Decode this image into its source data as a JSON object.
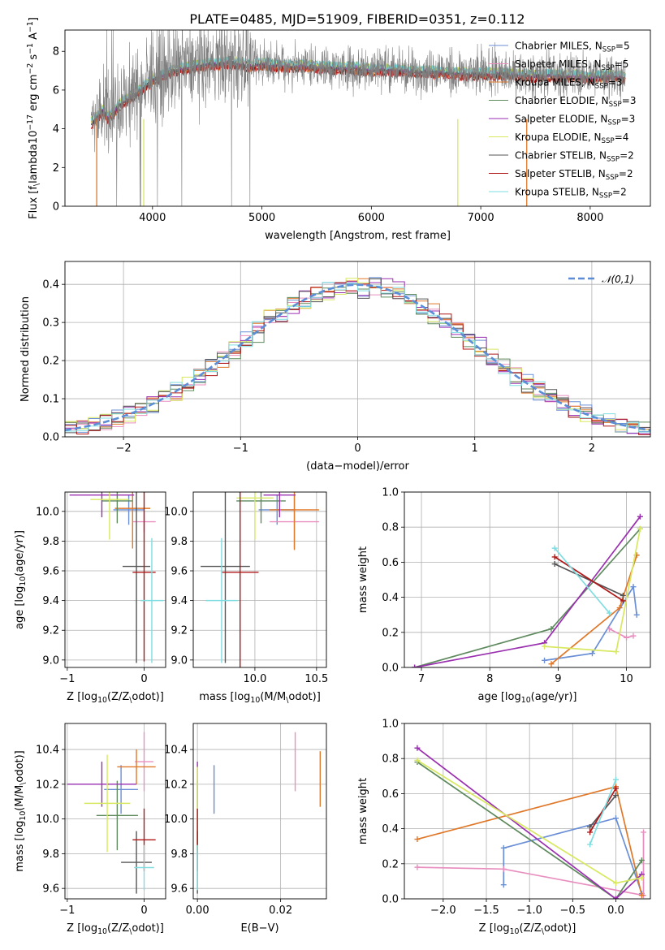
{
  "title": "PLATE=0485, MJD=51909, FIBERID=0351, z=0.112",
  "colors": {
    "chabrier_miles": "#6a8fd6",
    "salpeter_miles": "#e88fbf",
    "kroupa_miles": "#e0782a",
    "chabrier_elodie": "#5e8a5e",
    "salpeter_elodie": "#9a2fb0",
    "kroupa_elodie": "#d8e860",
    "chabrier_stelib": "#555555",
    "salpeter_stelib": "#b01818",
    "kroupa_stelib": "#7fdde0",
    "normal": "#5b8ed6",
    "grid": "#b0b0b0"
  },
  "chart_data": [
    {
      "id": "spectrum",
      "type": "line",
      "title": "PLATE=0485, MJD=51909, FIBERID=0351, z=0.112",
      "xlabel": "wavelength [Angstrom, rest frame]",
      "ylabel": "Flux [f$_\\lambda$10$^{-17}$ erg cm$^{-2}$ s$^{-1}$ A$^{-1}$]",
      "xlim": [
        3200,
        8550
      ],
      "ylim": [
        0,
        9.1
      ],
      "xticks": [
        "4000",
        "5000",
        "6000",
        "7000",
        "8000"
      ],
      "yticks": [
        "0",
        "2",
        "4",
        "6",
        "8"
      ],
      "data_series": {
        "name": "data",
        "x": [
          3450,
          3500,
          3550,
          3600,
          3650,
          3700,
          3800,
          3900,
          4000,
          4100,
          4200,
          4300,
          4400,
          4500,
          4600,
          4700,
          4800,
          4900,
          5000,
          5200,
          5400,
          5600,
          5800,
          6000,
          6200,
          6400,
          6600,
          6800,
          7000,
          7200,
          7400,
          7600,
          7800,
          8000,
          8200,
          8300
        ],
        "y": [
          4.4,
          4.7,
          5.0,
          4.6,
          4.9,
          5.3,
          5.7,
          6.1,
          6.6,
          6.8,
          7.1,
          7.2,
          7.3,
          7.4,
          7.4,
          7.5,
          7.4,
          7.3,
          7.4,
          7.3,
          7.3,
          7.2,
          7.2,
          7.1,
          7.1,
          7.0,
          7.0,
          6.9,
          6.9,
          6.9,
          6.8,
          6.8,
          6.8,
          6.7,
          6.8,
          6.7
        ]
      },
      "legend": [
        "Chabrier MILES, N$_{SSP}$=5",
        "Salpeter MILES, N$_{SSP}$=5",
        "Kroupa MILES, N$_{SSP}$=3",
        "Chabrier ELODIE, N$_{SSP}$=3",
        "Salpeter ELODIE, N$_{SSP}$=3",
        "Kroupa ELODIE, N$_{SSP}$=4",
        "Chabrier STELIB, N$_{SSP}$=2",
        "Salpeter STELIB, N$_{SSP}$=2",
        "Kroupa STELIB, N$_{SSP}$=2"
      ],
      "legend_location": "upper right"
    },
    {
      "id": "residuals",
      "type": "line",
      "xlabel": "(data-model)/error",
      "ylabel": "Normed distribution",
      "xlim": [
        -2.5,
        2.5
      ],
      "ylim": [
        0,
        0.46
      ],
      "xticks": [
        "−2",
        "−1",
        "0",
        "1",
        "2"
      ],
      "yticks": [
        "0.0",
        "0.1",
        "0.2",
        "0.3",
        "0.4"
      ],
      "legend": [
        "$\\mathcal{N}(0,1)$"
      ],
      "legend_location": "upper right",
      "grid": true
    },
    {
      "id": "age_vs_z",
      "type": "scatter",
      "xlabel": "Z [log$_{10}$($Z/Z_\\odot$)]",
      "ylabel": "age  [log$_{10}$($age/yr$)]",
      "xlim": [
        -1.03,
        0.28
      ],
      "ylim": [
        8.95,
        10.13
      ],
      "xticks": [
        "−1",
        "0"
      ],
      "yticks": [
        "9.0",
        "9.2",
        "9.4",
        "9.6",
        "9.8",
        "10.0"
      ],
      "grid": true,
      "errorbars": [
        {
          "series": "chabrier_miles",
          "x": -0.2,
          "y": 10.01,
          "xerr": 0.2,
          "yerr": 0.1
        },
        {
          "series": "salpeter_miles",
          "x": 0.0,
          "y": 9.93,
          "xerr": 0.15,
          "yerr": 0.07
        },
        {
          "series": "kroupa_miles",
          "x": -0.15,
          "y": 10.02,
          "xerr": 0.23,
          "yerr": 0.27
        },
        {
          "series": "chabrier_elodie",
          "x": -0.35,
          "y": 10.07,
          "xerr": 0.2,
          "yerr": 0.15
        },
        {
          "series": "salpeter_elodie",
          "x": -0.55,
          "y": 10.11,
          "xerr": 0.42,
          "yerr": 0.15
        },
        {
          "series": "kroupa_elodie",
          "x": -0.45,
          "y": 10.08,
          "xerr": 0.25,
          "yerr": 0.27
        },
        {
          "series": "chabrier_stelib",
          "x": -0.1,
          "y": 9.63,
          "xerr": 0.18,
          "yerr": 0.65
        },
        {
          "series": "salpeter_stelib",
          "x": 0.0,
          "y": 9.59,
          "xerr": 0.15,
          "yerr": 0.6
        },
        {
          "series": "kroupa_stelib",
          "x": 0.1,
          "y": 9.4,
          "xerr": 0.15,
          "yerr": 0.42
        }
      ]
    },
    {
      "id": "age_vs_mass",
      "type": "scatter",
      "xlabel": "mass [log$_{10}$($M/M_\\odot$)]",
      "xlim": [
        9.5,
        10.58
      ],
      "ylim": [
        8.95,
        10.13
      ],
      "xticks": [
        "10.0",
        "10.5"
      ],
      "yticks": [
        "9.0",
        "9.2",
        "9.4",
        "9.6",
        "9.8",
        "10.0"
      ],
      "grid": true,
      "errorbars": [
        {
          "series": "chabrier_miles",
          "x": 10.18,
          "y": 10.01,
          "xerr": 0.15,
          "yerr": 0.1
        },
        {
          "series": "salpeter_miles",
          "x": 10.32,
          "y": 9.93,
          "xerr": 0.2,
          "yerr": 0.18
        },
        {
          "series": "kroupa_miles",
          "x": 10.32,
          "y": 10.01,
          "xerr": 0.2,
          "yerr": 0.27
        },
        {
          "series": "chabrier_elodie",
          "x": 10.05,
          "y": 10.07,
          "xerr": 0.2,
          "yerr": 0.15
        },
        {
          "series": "salpeter_elodie",
          "x": 10.2,
          "y": 10.11,
          "xerr": 0.13,
          "yerr": 0.15
        },
        {
          "series": "kroupa_elodie",
          "x": 10.0,
          "y": 10.09,
          "xerr": 0.15,
          "yerr": 0.28
        },
        {
          "series": "chabrier_stelib",
          "x": 9.76,
          "y": 9.63,
          "xerr": 0.2,
          "yerr": 0.65
        },
        {
          "series": "salpeter_stelib",
          "x": 9.88,
          "y": 9.59,
          "xerr": 0.15,
          "yerr": 0.7
        },
        {
          "series": "kroupa_stelib",
          "x": 9.73,
          "y": 9.4,
          "xerr": 0.13,
          "yerr": 0.42
        }
      ]
    },
    {
      "id": "weight_vs_age",
      "type": "line",
      "xlabel": "age  [log$_{10}$($age/yr$)]",
      "ylabel": "mass weight",
      "xlim": [
        6.75,
        10.35
      ],
      "ylim": [
        0,
        1
      ],
      "xticks": [
        "7",
        "8",
        "9",
        "10"
      ],
      "yticks": [
        "0.0",
        "0.2",
        "0.4",
        "0.6",
        "0.8",
        "1.0"
      ],
      "grid": true,
      "series": [
        {
          "key": "chabrier_miles",
          "x": [
            8.8,
            9.5,
            10.1,
            10.15
          ],
          "y": [
            0.04,
            0.08,
            0.46,
            0.3
          ]
        },
        {
          "key": "salpeter_miles",
          "x": [
            9.75,
            10.0,
            10.1
          ],
          "y": [
            0.22,
            0.17,
            0.18
          ]
        },
        {
          "key": "kroupa_miles",
          "x": [
            8.9,
            9.9,
            10.15
          ],
          "y": [
            0.02,
            0.34,
            0.64
          ]
        },
        {
          "key": "chabrier_elodie",
          "x": [
            6.9,
            8.9,
            10.2
          ],
          "y": [
            0.0,
            0.22,
            0.79
          ]
        },
        {
          "key": "salpeter_elodie",
          "x": [
            6.9,
            8.8,
            10.2
          ],
          "y": [
            0.0,
            0.14,
            0.86
          ]
        },
        {
          "key": "kroupa_elodie",
          "x": [
            8.8,
            9.85,
            10.2
          ],
          "y": [
            0.12,
            0.09,
            0.79
          ]
        },
        {
          "key": "chabrier_stelib",
          "x": [
            8.95,
            9.95
          ],
          "y": [
            0.59,
            0.41
          ]
        },
        {
          "key": "salpeter_stelib",
          "x": [
            8.95,
            9.95
          ],
          "y": [
            0.63,
            0.38
          ]
        },
        {
          "key": "kroupa_stelib",
          "x": [
            8.95,
            9.75
          ],
          "y": [
            0.68,
            0.31
          ]
        }
      ]
    },
    {
      "id": "mass_vs_z",
      "type": "scatter",
      "xlabel": "Z [log$_{10}$($Z/Z_\\odot$)]",
      "ylabel": "mass [log$_{10}$($M/M_\\odot$)]",
      "xlim": [
        -1.03,
        0.28
      ],
      "ylim": [
        9.54,
        10.55
      ],
      "xticks": [
        "−1",
        "0"
      ],
      "yticks": [
        "9.6",
        "9.8",
        "10.0",
        "10.2",
        "10.4"
      ],
      "grid": true,
      "errorbars": [
        {
          "series": "chabrier_miles",
          "x": -0.3,
          "y": 10.17,
          "xerr": 0.22,
          "yerr": 0.14
        },
        {
          "series": "salpeter_miles",
          "x": 0.0,
          "y": 10.33,
          "xerr": 0.12,
          "yerr": 0.17
        },
        {
          "series": "kroupa_miles",
          "x": -0.1,
          "y": 10.3,
          "xerr": 0.25,
          "yerr": 0.1
        },
        {
          "series": "chabrier_elodie",
          "x": -0.35,
          "y": 10.02,
          "xerr": 0.27,
          "yerr": 0.2
        },
        {
          "series": "salpeter_elodie",
          "x": -0.55,
          "y": 10.2,
          "xerr": 0.45,
          "yerr": 0.13
        },
        {
          "series": "kroupa_elodie",
          "x": -0.48,
          "y": 10.09,
          "xerr": 0.3,
          "yerr": 0.28
        },
        {
          "series": "chabrier_stelib",
          "x": -0.1,
          "y": 9.75,
          "xerr": 0.2,
          "yerr": 0.18
        },
        {
          "series": "salpeter_stelib",
          "x": 0.0,
          "y": 9.88,
          "xerr": 0.15,
          "yerr": 0.18
        },
        {
          "series": "kroupa_stelib",
          "x": 0.0,
          "y": 9.72,
          "xerr": 0.13,
          "yerr": 0.13
        }
      ]
    },
    {
      "id": "mass_vs_ebv",
      "type": "scatter",
      "xlabel": "E(B-V)",
      "xlim": [
        -0.001,
        0.031
      ],
      "ylim": [
        9.54,
        10.55
      ],
      "xticks": [
        "0.00",
        "0.02"
      ],
      "yticks": [
        "9.6",
        "9.8",
        "10.0",
        "10.2",
        "10.4"
      ],
      "grid": true,
      "errorbars": [
        {
          "series": "chabrier_miles",
          "x": 0.004,
          "y": 10.17,
          "yerr": 0.14
        },
        {
          "series": "salpeter_miles",
          "x": 0.0235,
          "y": 10.33,
          "yerr": 0.17
        },
        {
          "series": "kroupa_miles",
          "x": 0.0295,
          "y": 10.23,
          "yerr": 0.16
        },
        {
          "series": "chabrier_elodie",
          "x": 0.0,
          "y": 10.02,
          "yerr": 0.2
        },
        {
          "series": "salpeter_elodie",
          "x": 0.0,
          "y": 10.2,
          "yerr": 0.13
        },
        {
          "series": "kroupa_elodie",
          "x": 0.0,
          "y": 10.05,
          "yerr": 0.25
        },
        {
          "series": "chabrier_stelib",
          "x": 0.0,
          "y": 9.75,
          "yerr": 0.18
        },
        {
          "series": "salpeter_stelib",
          "x": 0.0,
          "y": 9.88,
          "yerr": 0.18
        },
        {
          "series": "kroupa_stelib",
          "x": 0.0,
          "y": 9.72,
          "yerr": 0.13
        }
      ]
    },
    {
      "id": "weight_vs_z",
      "type": "line",
      "xlabel": "Z [log$_{10}$($Z/Z_\\odot$)]",
      "ylabel": "mass weight",
      "xlim": [
        -2.45,
        0.4
      ],
      "ylim": [
        0,
        1
      ],
      "xticks": [
        "−2.0",
        "−1.5",
        "−1.0",
        "−0.5",
        "0.0"
      ],
      "yticks": [
        "0.0",
        "0.2",
        "0.4",
        "0.6",
        "0.8",
        "1.0"
      ],
      "grid": true,
      "series": [
        {
          "key": "chabrier_miles",
          "x": [
            -1.3,
            -1.3,
            0.0,
            0.3
          ],
          "y": [
            0.08,
            0.29,
            0.46,
            0.03
          ]
        },
        {
          "key": "salpeter_miles",
          "x": [
            -2.3,
            -1.3,
            0.32,
            0.32
          ],
          "y": [
            0.18,
            0.17,
            0.02,
            0.38
          ]
        },
        {
          "key": "kroupa_miles",
          "x": [
            -2.3,
            0.0,
            0.3
          ],
          "y": [
            0.34,
            0.64,
            0.02
          ]
        },
        {
          "key": "chabrier_elodie",
          "x": [
            -2.3,
            0.0,
            0.3
          ],
          "y": [
            0.78,
            0.0,
            0.22
          ]
        },
        {
          "key": "salpeter_elodie",
          "x": [
            -2.3,
            0.0,
            0.3
          ],
          "y": [
            0.86,
            0.0,
            0.14
          ]
        },
        {
          "key": "kroupa_elodie",
          "x": [
            -2.3,
            0.0,
            0.3
          ],
          "y": [
            0.79,
            0.09,
            0.12
          ]
        },
        {
          "key": "chabrier_stelib",
          "x": [
            -0.3,
            0.0
          ],
          "y": [
            0.41,
            0.59
          ]
        },
        {
          "key": "salpeter_stelib",
          "x": [
            -0.3,
            0.0
          ],
          "y": [
            0.38,
            0.63
          ]
        },
        {
          "key": "kroupa_stelib",
          "x": [
            -0.3,
            0.0
          ],
          "y": [
            0.31,
            0.68
          ]
        }
      ]
    }
  ]
}
